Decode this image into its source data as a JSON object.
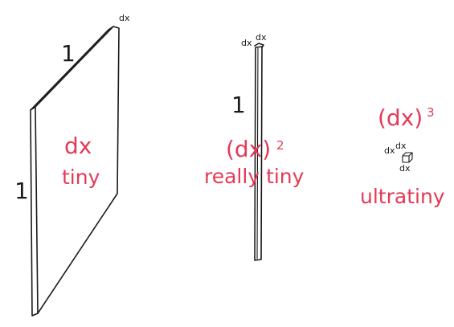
{
  "panel_sheet": {
    "side_top": "1",
    "side_left": "1",
    "corner_dx": "dx",
    "main": "dx",
    "caption": "tiny"
  },
  "panel_rod": {
    "side": "1",
    "corner_dx_left": "dx",
    "corner_dx_right": "dx",
    "main": "(dx)",
    "exponent": "2",
    "caption": "really tiny"
  },
  "panel_cube": {
    "main": "(dx)",
    "exponent": "3",
    "dx_left": "dx",
    "dx_top": "dx",
    "dx_bottom": "dx",
    "caption": "ultratiny"
  },
  "colors": {
    "ink": "#1a1a1a",
    "accent": "#e43a57"
  }
}
